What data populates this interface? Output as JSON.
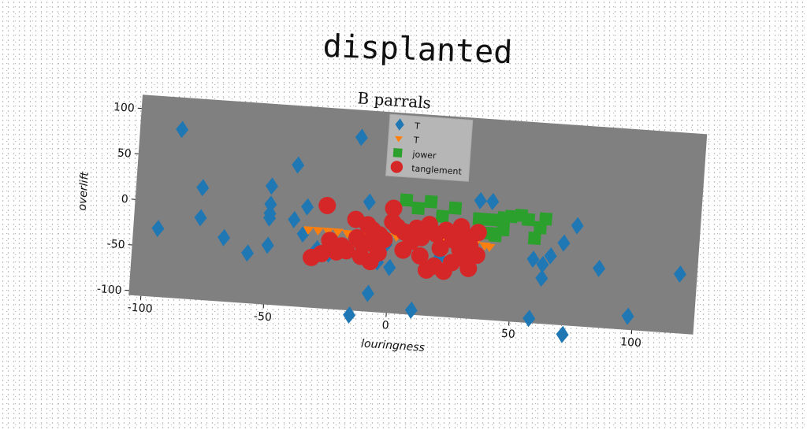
{
  "suptitle": "displanted",
  "chart_data": {
    "type": "scatter",
    "title": "B parrals",
    "xlabel": "louringness",
    "ylabel": "overlift",
    "xlim": [
      -105,
      125
    ],
    "ylim": [
      -105,
      115
    ],
    "xticks": [
      -100,
      -50,
      0,
      50,
      100
    ],
    "yticks": [
      -100,
      -50,
      0,
      50,
      100
    ],
    "grid": false,
    "background": "#808080",
    "legend_position": "upper-center",
    "series": [
      {
        "name": "T",
        "marker": "diamond",
        "color": "#1f77b4",
        "points": [
          [
            -88,
            80
          ],
          [
            -95,
            -30
          ],
          [
            -78,
            -15
          ],
          [
            -78,
            18
          ],
          [
            -68,
            -35
          ],
          [
            -58,
            -50
          ],
          [
            -50,
            25
          ],
          [
            -50,
            5
          ],
          [
            -50,
            -5
          ],
          [
            -50,
            -10
          ],
          [
            -50,
            -40
          ],
          [
            -40,
            50
          ],
          [
            -40,
            -10
          ],
          [
            -36,
            -25
          ],
          [
            -35,
            5
          ],
          [
            -30,
            -40
          ],
          [
            -25,
            -45
          ],
          [
            -15,
            85
          ],
          [
            -15,
            -110
          ],
          [
            -10,
            15
          ],
          [
            -8,
            -85
          ],
          [
            -5,
            -50
          ],
          [
            -2,
            -30
          ],
          [
            0,
            -55
          ],
          [
            10,
            -100
          ],
          [
            20,
            -40
          ],
          [
            25,
            -45
          ],
          [
            35,
            25
          ],
          [
            40,
            25
          ],
          [
            58,
            -35
          ],
          [
            58,
            -100
          ],
          [
            62,
            -55
          ],
          [
            62,
            -40
          ],
          [
            65,
            -30
          ],
          [
            70,
            -15
          ],
          [
            72,
            -115
          ],
          [
            75,
            5
          ],
          [
            85,
            -40
          ],
          [
            98,
            -90
          ],
          [
            118,
            -40
          ]
        ]
      },
      {
        "name": "T",
        "marker": "triangle-down",
        "color": "#ff7f0e",
        "points": [
          [
            -34,
            -20
          ],
          [
            -30,
            -20
          ],
          [
            -26,
            -20
          ],
          [
            -22,
            -20
          ],
          [
            -18,
            -21
          ],
          [
            -14,
            -21
          ],
          [
            -10,
            -21
          ],
          [
            -6,
            -21
          ],
          [
            -2,
            -21
          ],
          [
            2,
            -21
          ],
          [
            6,
            -22
          ],
          [
            10,
            -22
          ],
          [
            14,
            -22
          ],
          [
            18,
            -22
          ],
          [
            22,
            -22
          ],
          [
            26,
            -22
          ],
          [
            30,
            -22
          ],
          [
            34,
            -23
          ],
          [
            38,
            -24
          ],
          [
            40,
            -25
          ]
        ]
      },
      {
        "name": "jower",
        "marker": "square",
        "color": "#2ca02c",
        "points": [
          [
            5,
            20
          ],
          [
            10,
            12
          ],
          [
            15,
            20
          ],
          [
            20,
            5
          ],
          [
            25,
            15
          ],
          [
            28,
            -10
          ],
          [
            30,
            -15
          ],
          [
            35,
            5
          ],
          [
            40,
            5
          ],
          [
            40,
            -10
          ],
          [
            42,
            -12
          ],
          [
            45,
            8
          ],
          [
            45,
            -5
          ],
          [
            48,
            10
          ],
          [
            52,
            12
          ],
          [
            55,
            8
          ],
          [
            58,
            -12
          ],
          [
            60,
            0
          ],
          [
            62,
            10
          ]
        ]
      },
      {
        "name": "tanglement",
        "marker": "circle",
        "color": "#d62728",
        "points": [
          [
            -32,
            -50
          ],
          [
            -28,
            -45
          ],
          [
            -27,
            8
          ],
          [
            -25,
            -30
          ],
          [
            -22,
            -42
          ],
          [
            -20,
            -35
          ],
          [
            -18,
            -40
          ],
          [
            -15,
            -5
          ],
          [
            -14,
            -25
          ],
          [
            -12,
            -30
          ],
          [
            -12,
            -45
          ],
          [
            -10,
            -10
          ],
          [
            -8,
            -15
          ],
          [
            -8,
            -30
          ],
          [
            -8,
            -50
          ],
          [
            -5,
            -20
          ],
          [
            -5,
            -40
          ],
          [
            -3,
            -25
          ],
          [
            0,
            10
          ],
          [
            0,
            -5
          ],
          [
            2,
            -10
          ],
          [
            5,
            -15
          ],
          [
            5,
            -35
          ],
          [
            8,
            -25
          ],
          [
            10,
            -10
          ],
          [
            12,
            -20
          ],
          [
            12,
            -40
          ],
          [
            15,
            -5
          ],
          [
            15,
            -55
          ],
          [
            18,
            -15
          ],
          [
            18,
            -50
          ],
          [
            20,
            -30
          ],
          [
            22,
            -10
          ],
          [
            22,
            -55
          ],
          [
            25,
            -20
          ],
          [
            25,
            -45
          ],
          [
            28,
            -5
          ],
          [
            28,
            -30
          ],
          [
            30,
            -15
          ],
          [
            30,
            -40
          ],
          [
            32,
            -25
          ],
          [
            32,
            -50
          ],
          [
            35,
            -35
          ],
          [
            35,
            -10
          ]
        ]
      }
    ]
  }
}
